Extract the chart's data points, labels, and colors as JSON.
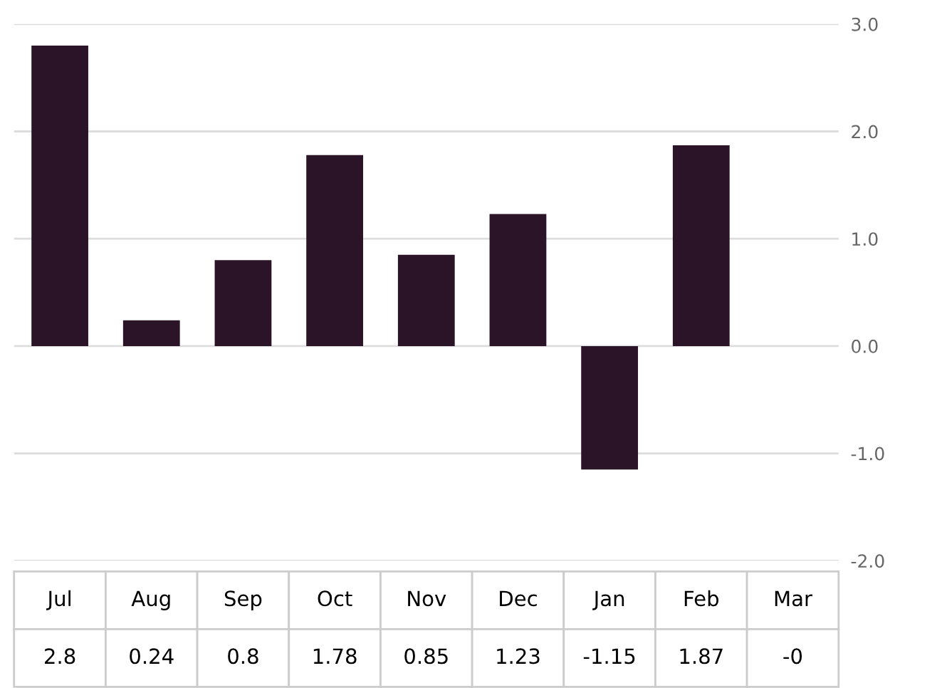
{
  "chart_data": {
    "type": "bar",
    "categories": [
      "Jul",
      "Aug",
      "Sep",
      "Oct",
      "Nov",
      "Dec",
      "Jan",
      "Feb",
      "Mar"
    ],
    "values": [
      2.8,
      0.24,
      0.8,
      1.78,
      0.85,
      1.23,
      -1.15,
      1.87,
      0
    ],
    "value_labels": [
      "2.8",
      "0.24",
      "0.8",
      "1.78",
      "0.85",
      "1.23",
      "-1.15",
      "1.87",
      "-0"
    ],
    "color": "#2b1428",
    "ylim": [
      -2,
      3
    ],
    "yticks": [
      {
        "value": -2,
        "label": "-2.0"
      },
      {
        "value": -1,
        "label": "-1.0"
      },
      {
        "value": 0,
        "label": "0.0"
      },
      {
        "value": 1,
        "label": "1.0"
      },
      {
        "value": 2,
        "label": "2.0"
      },
      {
        "value": 3,
        "label": "3.0"
      }
    ],
    "grid": "y"
  }
}
